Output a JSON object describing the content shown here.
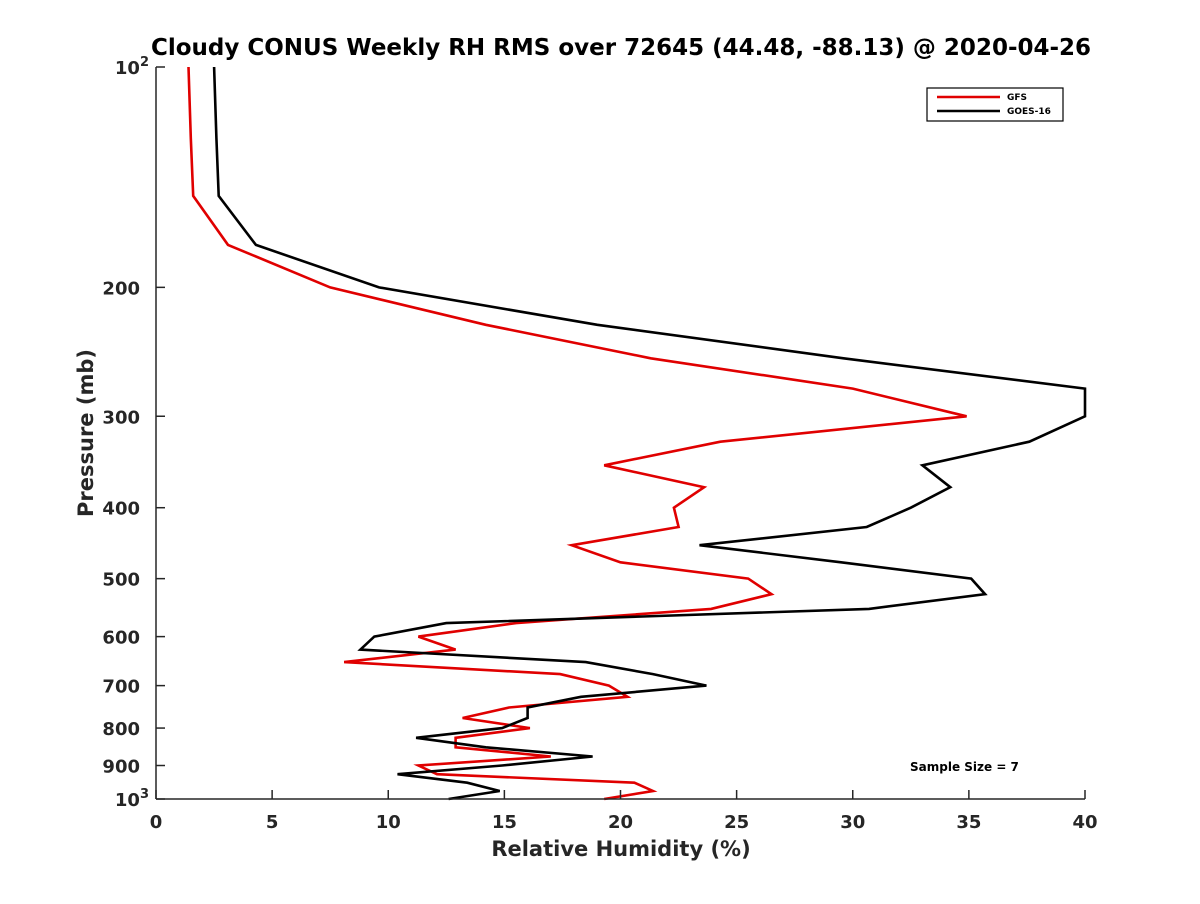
{
  "chart_data": {
    "type": "line",
    "title": "Cloudy CONUS Weekly RH RMS over 72645 (44.48, -88.13) @ 2020-04-26",
    "xlabel": "Relative Humidity (%)",
    "ylabel": "Pressure (mb)",
    "xlim": [
      0,
      40
    ],
    "ylim": [
      100,
      1000
    ],
    "y_scale": "log",
    "y_reversed": true,
    "grid": false,
    "legend_position": "top-right",
    "x_ticks": [
      0,
      5,
      10,
      15,
      20,
      25,
      30,
      35,
      40
    ],
    "x_tick_labels": [
      "0",
      "5",
      "10",
      "15",
      "20",
      "25",
      "30",
      "35",
      "40"
    ],
    "y_ticks": [
      100,
      200,
      300,
      400,
      500,
      600,
      700,
      800,
      900,
      1000
    ],
    "y_tick_labels": [
      {
        "base": "10",
        "exp": "2"
      },
      {
        "base": "200",
        "exp": ""
      },
      {
        "base": "300",
        "exp": ""
      },
      {
        "base": "400",
        "exp": ""
      },
      {
        "base": "500",
        "exp": ""
      },
      {
        "base": "600",
        "exp": ""
      },
      {
        "base": "700",
        "exp": ""
      },
      {
        "base": "800",
        "exp": ""
      },
      {
        "base": "900",
        "exp": ""
      },
      {
        "base": "10",
        "exp": "3"
      }
    ],
    "annotation": "Sample Size = 7",
    "series": [
      {
        "name": "GFS",
        "color": "#e00000",
        "points": [
          {
            "x": 1.4,
            "y": 100
          },
          {
            "x": 1.5,
            "y": 125
          },
          {
            "x": 1.6,
            "y": 150
          },
          {
            "x": 3.1,
            "y": 175
          },
          {
            "x": 7.5,
            "y": 200
          },
          {
            "x": 14.2,
            "y": 225
          },
          {
            "x": 21.3,
            "y": 250
          },
          {
            "x": 30.0,
            "y": 275
          },
          {
            "x": 34.9,
            "y": 300
          },
          {
            "x": 24.3,
            "y": 325
          },
          {
            "x": 19.3,
            "y": 350
          },
          {
            "x": 23.6,
            "y": 375
          },
          {
            "x": 22.3,
            "y": 400
          },
          {
            "x": 22.5,
            "y": 425
          },
          {
            "x": 17.9,
            "y": 450
          },
          {
            "x": 20.0,
            "y": 475
          },
          {
            "x": 25.5,
            "y": 500
          },
          {
            "x": 26.5,
            "y": 525
          },
          {
            "x": 23.9,
            "y": 550
          },
          {
            "x": 15.5,
            "y": 575
          },
          {
            "x": 11.3,
            "y": 600
          },
          {
            "x": 12.9,
            "y": 625
          },
          {
            "x": 8.1,
            "y": 650
          },
          {
            "x": 17.4,
            "y": 675
          },
          {
            "x": 19.5,
            "y": 700
          },
          {
            "x": 20.3,
            "y": 725
          },
          {
            "x": 15.2,
            "y": 750
          },
          {
            "x": 13.2,
            "y": 775
          },
          {
            "x": 16.1,
            "y": 800
          },
          {
            "x": 12.9,
            "y": 825
          },
          {
            "x": 12.9,
            "y": 850
          },
          {
            "x": 17.0,
            "y": 875
          },
          {
            "x": 11.3,
            "y": 900
          },
          {
            "x": 12.1,
            "y": 925
          },
          {
            "x": 20.6,
            "y": 950
          },
          {
            "x": 21.4,
            "y": 975
          },
          {
            "x": 19.3,
            "y": 1000
          }
        ]
      },
      {
        "name": "GOES-16",
        "color": "#000000",
        "points": [
          {
            "x": 2.5,
            "y": 100
          },
          {
            "x": 2.6,
            "y": 125
          },
          {
            "x": 2.7,
            "y": 150
          },
          {
            "x": 4.3,
            "y": 175
          },
          {
            "x": 9.6,
            "y": 200
          },
          {
            "x": 19.0,
            "y": 225
          },
          {
            "x": 29.6,
            "y": 250
          },
          {
            "x": 40.0,
            "y": 275
          },
          {
            "x": 40.0,
            "y": 300
          },
          {
            "x": 37.6,
            "y": 325
          },
          {
            "x": 33.0,
            "y": 350
          },
          {
            "x": 34.2,
            "y": 375
          },
          {
            "x": 32.5,
            "y": 400
          },
          {
            "x": 30.6,
            "y": 425
          },
          {
            "x": 23.4,
            "y": 450
          },
          {
            "x": 29.5,
            "y": 475
          },
          {
            "x": 35.1,
            "y": 500
          },
          {
            "x": 35.7,
            "y": 525
          },
          {
            "x": 30.7,
            "y": 550
          },
          {
            "x": 12.5,
            "y": 575
          },
          {
            "x": 9.4,
            "y": 600
          },
          {
            "x": 8.8,
            "y": 625
          },
          {
            "x": 18.5,
            "y": 650
          },
          {
            "x": 21.4,
            "y": 675
          },
          {
            "x": 23.7,
            "y": 700
          },
          {
            "x": 18.3,
            "y": 725
          },
          {
            "x": 16.0,
            "y": 750
          },
          {
            "x": 16.0,
            "y": 775
          },
          {
            "x": 14.9,
            "y": 800
          },
          {
            "x": 11.2,
            "y": 825
          },
          {
            "x": 14.2,
            "y": 850
          },
          {
            "x": 18.8,
            "y": 875
          },
          {
            "x": 14.9,
            "y": 900
          },
          {
            "x": 10.4,
            "y": 925
          },
          {
            "x": 13.4,
            "y": 950
          },
          {
            "x": 14.8,
            "y": 975
          },
          {
            "x": 12.6,
            "y": 1000
          }
        ]
      }
    ]
  }
}
